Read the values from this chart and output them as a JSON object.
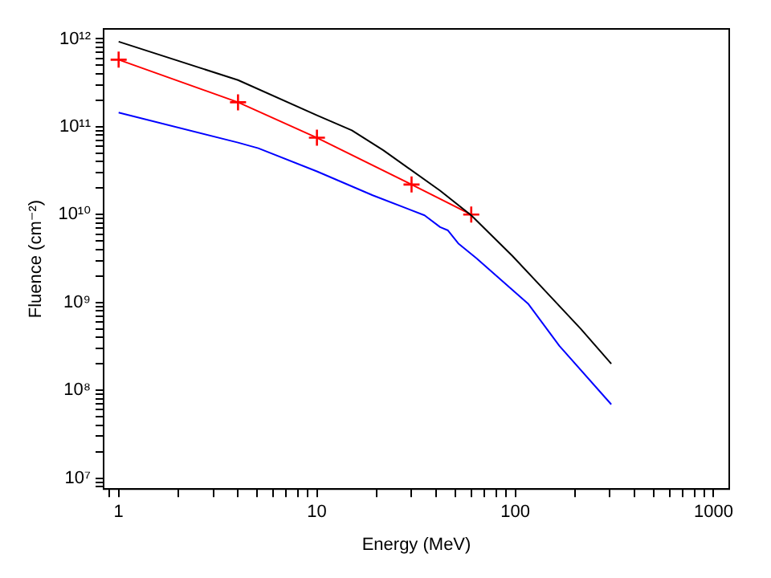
{
  "chart_data": {
    "type": "line",
    "xlabel": "Energy (MeV)",
    "ylabel": "Fluence (cm⁻²)",
    "log": "xy",
    "grid": false,
    "legend": false,
    "xlim": [
      0.84,
      1200
    ],
    "ylim": [
      7500000.0,
      1300000000000.0
    ],
    "xticks": [
      {
        "value": 0.9,
        "label": null
      },
      1,
      {
        "value": 2,
        "label": null
      },
      {
        "value": 3,
        "label": null
      },
      {
        "value": 4,
        "label": null
      },
      {
        "value": 5,
        "label": null
      },
      {
        "value": 6,
        "label": null
      },
      {
        "value": 7,
        "label": null
      },
      {
        "value": 8,
        "label": null
      },
      {
        "value": 9,
        "label": null
      },
      10,
      {
        "value": 20,
        "label": null
      },
      {
        "value": 30,
        "label": null
      },
      {
        "value": 40,
        "label": null
      },
      {
        "value": 50,
        "label": null
      },
      {
        "value": 60,
        "label": null
      },
      {
        "value": 70,
        "label": null
      },
      {
        "value": 80,
        "label": null
      },
      {
        "value": 90,
        "label": null
      },
      100,
      {
        "value": 200,
        "label": null
      },
      {
        "value": 300,
        "label": null
      },
      {
        "value": 400,
        "label": null
      },
      {
        "value": 500,
        "label": null
      },
      {
        "value": 600,
        "label": null
      },
      {
        "value": 700,
        "label": null
      },
      {
        "value": 800,
        "label": null
      },
      {
        "value": 900,
        "label": null
      },
      1000
    ],
    "yticks": [
      {
        "value": 8000000.0,
        "label": null
      },
      {
        "value": 9000000.0,
        "label": null
      },
      {
        "value": 10000000.0,
        "label": "10⁷"
      },
      {
        "value": 20000000.0,
        "label": null
      },
      {
        "value": 30000000.0,
        "label": null
      },
      {
        "value": 40000000.0,
        "label": null
      },
      {
        "value": 50000000.0,
        "label": null
      },
      {
        "value": 60000000.0,
        "label": null
      },
      {
        "value": 70000000.0,
        "label": null
      },
      {
        "value": 80000000.0,
        "label": null
      },
      {
        "value": 90000000.0,
        "label": null
      },
      {
        "value": 100000000.0,
        "label": "10⁸"
      },
      {
        "value": 200000000.0,
        "label": null
      },
      {
        "value": 300000000.0,
        "label": null
      },
      {
        "value": 400000000.0,
        "label": null
      },
      {
        "value": 500000000.0,
        "label": null
      },
      {
        "value": 600000000.0,
        "label": null
      },
      {
        "value": 700000000.0,
        "label": null
      },
      {
        "value": 800000000.0,
        "label": null
      },
      {
        "value": 900000000.0,
        "label": null
      },
      {
        "value": 1000000000.0,
        "label": "10⁹"
      },
      {
        "value": 2000000000.0,
        "label": null
      },
      {
        "value": 3000000000.0,
        "label": null
      },
      {
        "value": 4000000000.0,
        "label": null
      },
      {
        "value": 5000000000.0,
        "label": null
      },
      {
        "value": 6000000000.0,
        "label": null
      },
      {
        "value": 7000000000.0,
        "label": null
      },
      {
        "value": 8000000000.0,
        "label": null
      },
      {
        "value": 9000000000.0,
        "label": null
      },
      {
        "value": 10000000000.0,
        "label": "10¹⁰"
      },
      {
        "value": 20000000000.0,
        "label": null
      },
      {
        "value": 30000000000.0,
        "label": null
      },
      {
        "value": 40000000000.0,
        "label": null
      },
      {
        "value": 50000000000.0,
        "label": null
      },
      {
        "value": 60000000000.0,
        "label": null
      },
      {
        "value": 70000000000.0,
        "label": null
      },
      {
        "value": 80000000000.0,
        "label": null
      },
      {
        "value": 90000000000.0,
        "label": null
      },
      {
        "value": 100000000000.0,
        "label": "10¹¹"
      },
      {
        "value": 200000000000.0,
        "label": null
      },
      {
        "value": 300000000000.0,
        "label": null
      },
      {
        "value": 400000000000.0,
        "label": null
      },
      {
        "value": 500000000000.0,
        "label": null
      },
      {
        "value": 600000000000.0,
        "label": null
      },
      {
        "value": 700000000000.0,
        "label": null
      },
      {
        "value": 800000000000.0,
        "label": null
      },
      {
        "value": 900000000000.0,
        "label": null
      },
      {
        "value": 1000000000000.0,
        "label": "10¹²"
      }
    ],
    "series": [
      {
        "color": "#000000",
        "marker": "none",
        "x": [
          1,
          4,
          10,
          15,
          21.6,
          41.8,
          60,
          96.5,
          138,
          214,
          305
        ],
        "values": [
          930000000000.0,
          340000000000.0,
          135000000000.0,
          91000000000.0,
          54000000000.0,
          18700000000.0,
          9800000000.0,
          3400000000.0,
          1440000000.0,
          500000000.0,
          200000000.0
        ]
      },
      {
        "color": "#ff0000",
        "marker": "cross",
        "x": [
          1,
          4,
          10,
          30,
          60
        ],
        "values": [
          580000000000.0,
          190000000000.0,
          75000000000.0,
          22000000000.0,
          10000000000.0
        ]
      },
      {
        "color": "#0000ff",
        "marker": "none",
        "x": [
          1,
          4,
          5.06,
          10,
          19.1,
          34.9,
          41.8,
          45.8,
          51.6,
          63.6,
          116,
          167,
          305
        ],
        "values": [
          145000000000.0,
          66000000000.0,
          57000000000.0,
          31000000000.0,
          16600000000.0,
          9800000000.0,
          7200000000.0,
          6600000000.0,
          4700000000.0,
          3200000000.0,
          970000000.0,
          320000000.0,
          69000000.0
        ]
      }
    ]
  }
}
